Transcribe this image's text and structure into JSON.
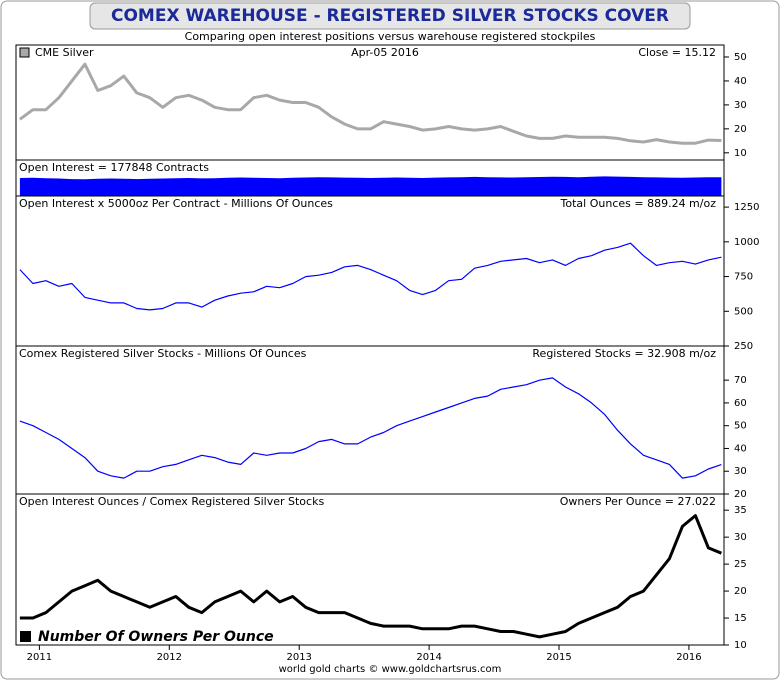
{
  "title": "COMEX WAREHOUSE - REGISTERED SILVER STOCKS COVER",
  "subtitle": "Comparing open interest positions versus warehouse registered stockpiles",
  "footer": "world gold charts © www.goldchartsrus.com",
  "x_axis": {
    "x": [
      2010.85,
      2010.95,
      2011.05,
      2011.15,
      2011.25,
      2011.35,
      2011.45,
      2011.55,
      2011.65,
      2011.75,
      2011.85,
      2011.95,
      2012.05,
      2012.15,
      2012.25,
      2012.35,
      2012.45,
      2012.55,
      2012.65,
      2012.75,
      2012.85,
      2012.95,
      2013.05,
      2013.15,
      2013.25,
      2013.35,
      2013.45,
      2013.55,
      2013.65,
      2013.75,
      2013.85,
      2013.95,
      2014.05,
      2014.15,
      2014.25,
      2014.35,
      2014.45,
      2014.55,
      2014.65,
      2014.75,
      2014.85,
      2014.95,
      2015.05,
      2015.15,
      2015.25,
      2015.35,
      2015.45,
      2015.55,
      2015.65,
      2015.75,
      2015.85,
      2015.95,
      2016.05,
      2016.15,
      2016.25
    ],
    "xlim": [
      2010.82,
      2016.27
    ],
    "xticks": [
      2011,
      2012,
      2013,
      2014,
      2015,
      2016
    ]
  },
  "chart_data": [
    {
      "type": "line",
      "center_label": "Apr-05  2016",
      "right_label": "Close = 15.12",
      "ylim": [
        7,
        55
      ],
      "yticks": [
        10,
        20,
        30,
        40,
        50
      ],
      "series": [
        {
          "name": "CME Silver",
          "color": "#a8a8a8",
          "values": [
            24,
            28,
            28,
            33,
            40,
            47,
            36,
            38,
            42,
            35,
            33,
            29,
            33,
            34,
            32,
            29,
            28,
            28,
            33,
            34,
            32,
            31,
            31,
            29,
            25,
            22,
            20,
            20,
            23,
            22,
            21,
            19.5,
            20,
            21,
            20,
            19.5,
            20,
            21,
            19,
            17,
            16,
            16,
            17,
            16.5,
            16.5,
            16.5,
            16,
            15,
            14.5,
            15.5,
            14.5,
            14,
            14,
            15.3,
            15.12
          ]
        }
      ]
    },
    {
      "type": "area",
      "left_label": "Open Interest = 177848 Contracts",
      "ylim": [
        0,
        340000
      ],
      "series": [
        {
          "color": "#0000ff",
          "values": [
            170000,
            172000,
            168000,
            165000,
            160000,
            158000,
            162000,
            165000,
            163000,
            160000,
            162000,
            165000,
            168000,
            170000,
            166000,
            168000,
            172000,
            175000,
            173000,
            170000,
            168000,
            172000,
            175000,
            178000,
            176000,
            174000,
            172000,
            170000,
            173000,
            175000,
            172000,
            170000,
            174000,
            176000,
            178000,
            180000,
            178000,
            176000,
            175000,
            177000,
            179000,
            181000,
            180000,
            178000,
            182000,
            185000,
            183000,
            180000,
            178000,
            176000,
            174000,
            172000,
            175000,
            178000,
            177848
          ]
        }
      ]
    },
    {
      "type": "line",
      "left_label": "Open Interest x 5000oz Per Contract - Millions Of Ounces",
      "right_label": "Total Ounces = 889.24 m/oz",
      "ylim": [
        250,
        1330
      ],
      "yticks": [
        250,
        500,
        750,
        1000,
        1250
      ],
      "series": [
        {
          "color": "#0000ff",
          "values": [
            800,
            700,
            720,
            680,
            700,
            600,
            580,
            560,
            560,
            520,
            510,
            520,
            560,
            560,
            530,
            580,
            610,
            630,
            640,
            680,
            670,
            700,
            750,
            760,
            780,
            820,
            830,
            800,
            760,
            720,
            650,
            620,
            650,
            720,
            730,
            810,
            830,
            860,
            870,
            880,
            850,
            870,
            830,
            880,
            900,
            940,
            960,
            990,
            900,
            830,
            850,
            860,
            840,
            870,
            889.24
          ]
        }
      ]
    },
    {
      "type": "line",
      "left_label": "Comex Registered Silver Stocks - Millions Of Ounces",
      "right_label": "Registered Stocks = 32.908 m/oz",
      "ylim": [
        20,
        85
      ],
      "yticks": [
        20,
        30,
        40,
        50,
        60,
        70
      ],
      "series": [
        {
          "color": "#0000ff",
          "values": [
            52,
            50,
            47,
            44,
            40,
            36,
            30,
            28,
            27,
            30,
            30,
            32,
            33,
            35,
            37,
            36,
            34,
            33,
            38,
            37,
            38,
            38,
            40,
            43,
            44,
            42,
            42,
            45,
            47,
            50,
            52,
            54,
            56,
            58,
            60,
            62,
            63,
            66,
            67,
            68,
            70,
            71,
            67,
            64,
            60,
            55,
            48,
            42,
            37,
            35,
            33,
            27,
            28,
            31,
            32.908
          ]
        }
      ]
    },
    {
      "type": "line",
      "left_label": "Open Interest Ounces / Comex Registered Silver Stocks",
      "right_label": "Owners Per Ounce = 27.022",
      "ylim": [
        10,
        38
      ],
      "yticks": [
        10,
        15,
        20,
        25,
        30,
        35
      ],
      "series": [
        {
          "name": "Number Of Owners Per Ounce",
          "color": "#000000",
          "values": [
            15,
            15,
            16,
            18,
            20,
            21,
            22,
            20,
            19,
            18,
            17,
            18,
            19,
            17,
            16,
            18,
            19,
            20,
            18,
            20,
            18,
            19,
            17,
            16,
            16,
            16,
            15,
            14,
            13.5,
            13.5,
            13.5,
            13,
            13,
            13,
            13.5,
            13.5,
            13,
            12.5,
            12.5,
            12,
            11.5,
            12,
            12.5,
            14,
            15,
            16,
            17,
            19,
            20,
            23,
            26,
            32,
            34,
            28,
            27.022
          ]
        }
      ]
    }
  ]
}
